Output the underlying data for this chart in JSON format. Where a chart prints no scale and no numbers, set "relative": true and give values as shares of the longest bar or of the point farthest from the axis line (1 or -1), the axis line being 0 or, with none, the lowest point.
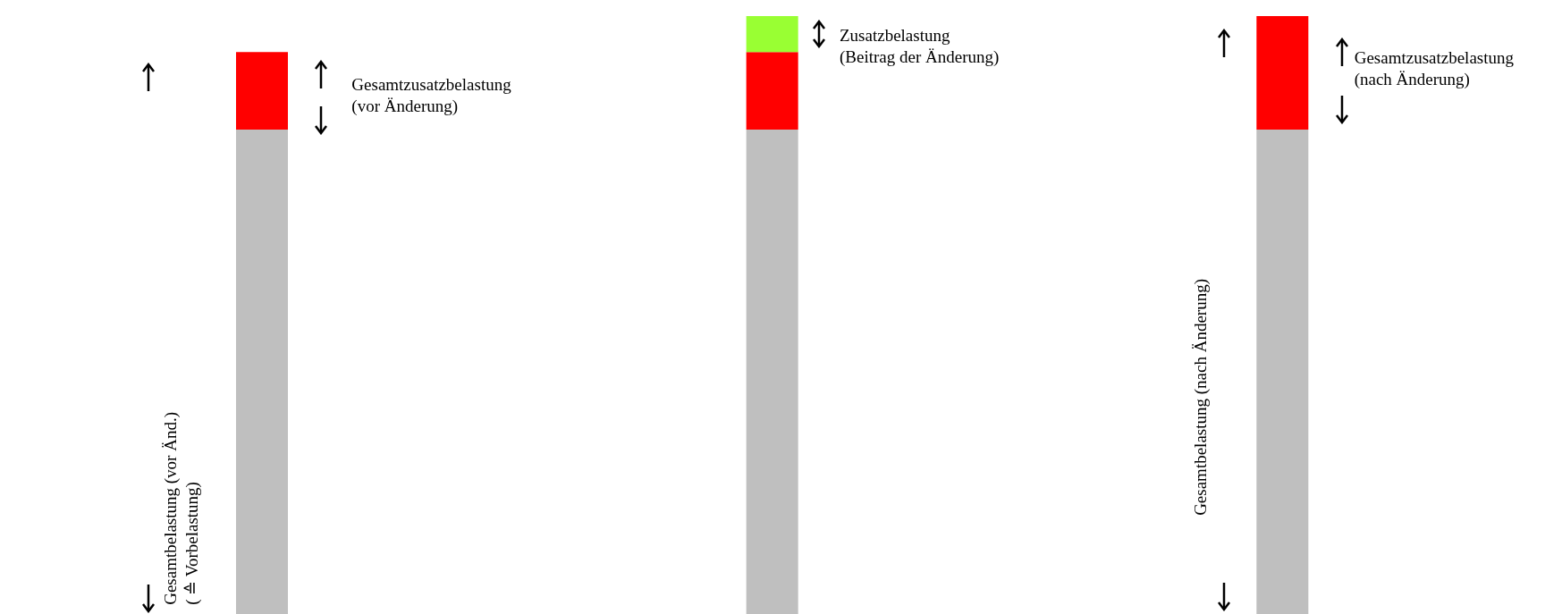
{
  "chart_data": {
    "type": "bar",
    "relative": true,
    "stacked": true,
    "categories": [
      null,
      null,
      null
    ],
    "series": [
      {
        "color": "#bfbfbf",
        "values": [
          0.81,
          0.81,
          0.81
        ]
      },
      {
        "color": "#ff0000",
        "values": [
          0.13,
          0.13,
          0.19
        ]
      },
      {
        "color": "#99ff33",
        "values": [
          null,
          0.06,
          null
        ]
      }
    ],
    "annotations": [
      "Gesamtzusatzbelastung\n(vor Änderung)",
      "Gesamtbelastung (vor Änd.)\n( ≙ Vorbelastung)",
      "Zusatzbelastung\n(Beitrag der Änderung)",
      "Gesamtzusatzbelastung\n(nach Änderung)",
      "Gesamtbelastung (nach Änderung)"
    ],
    "grid": false,
    "legend": false
  }
}
